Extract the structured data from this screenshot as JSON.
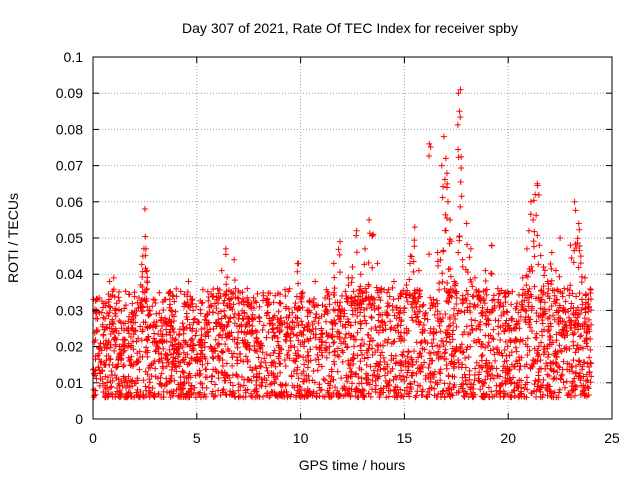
{
  "chart_data": {
    "type": "scatter",
    "title": "Day 307 of 2021, Rate Of TEC Index for receiver spby",
    "xlabel": "GPS time / hours",
    "ylabel": "ROTI / TECUs",
    "xlim": [
      0,
      25
    ],
    "ylim": [
      0,
      0.1
    ],
    "x_ticks": [
      0,
      5,
      10,
      15,
      20,
      25
    ],
    "x_tick_labels": [
      "0",
      "5",
      "10",
      "15",
      "20",
      "25"
    ],
    "y_ticks": [
      0,
      0.01,
      0.02,
      0.03,
      0.04,
      0.05,
      0.06,
      0.07,
      0.08,
      0.09,
      0.1
    ],
    "y_tick_labels": [
      "0",
      "0.01",
      "0.02",
      "0.03",
      "0.04",
      "0.05",
      "0.06",
      "0.07",
      "0.08",
      "0.09",
      "0.1"
    ],
    "grid": true,
    "marker": "plus",
    "color": "#ff0000",
    "series": [
      {
        "points": [
          [
            0.1,
            0.012
          ],
          [
            0.2,
            0.033
          ],
          [
            0.3,
            0.02
          ],
          [
            0.5,
            0.028
          ],
          [
            0.6,
            0.015
          ],
          [
            0.8,
            0.038
          ],
          [
            0.9,
            0.025
          ],
          [
            1.0,
            0.039
          ],
          [
            1.1,
            0.03
          ],
          [
            1.3,
            0.018
          ],
          [
            1.5,
            0.022
          ],
          [
            1.7,
            0.027
          ],
          [
            1.9,
            0.029
          ],
          [
            2.0,
            0.035
          ],
          [
            2.1,
            0.016
          ],
          [
            2.3,
            0.037
          ],
          [
            2.4,
            0.045
          ],
          [
            2.5,
            0.058
          ],
          [
            2.55,
            0.047
          ],
          [
            2.6,
            0.041
          ],
          [
            2.7,
            0.03
          ],
          [
            2.9,
            0.026
          ],
          [
            3.1,
            0.021
          ],
          [
            3.3,
            0.028
          ],
          [
            3.5,
            0.018
          ],
          [
            3.7,
            0.035
          ],
          [
            3.9,
            0.024
          ],
          [
            4.1,
            0.02
          ],
          [
            4.4,
            0.032
          ],
          [
            4.6,
            0.038
          ],
          [
            4.8,
            0.025
          ],
          [
            5.0,
            0.017
          ],
          [
            5.2,
            0.022
          ],
          [
            5.5,
            0.029
          ],
          [
            5.8,
            0.019
          ],
          [
            6.0,
            0.036
          ],
          [
            6.2,
            0.041
          ],
          [
            6.4,
            0.047
          ],
          [
            6.6,
            0.033
          ],
          [
            6.8,
            0.044
          ],
          [
            7.0,
            0.029
          ],
          [
            7.2,
            0.035
          ],
          [
            7.4,
            0.026
          ],
          [
            7.6,
            0.031
          ],
          [
            7.9,
            0.024
          ],
          [
            8.1,
            0.021
          ],
          [
            8.4,
            0.033
          ],
          [
            8.7,
            0.028
          ],
          [
            9.0,
            0.024
          ],
          [
            9.3,
            0.031
          ],
          [
            9.6,
            0.027
          ],
          [
            9.9,
            0.043
          ],
          [
            10.1,
            0.035
          ],
          [
            10.4,
            0.03
          ],
          [
            10.7,
            0.038
          ],
          [
            11.0,
            0.025
          ],
          [
            11.3,
            0.034
          ],
          [
            11.6,
            0.043
          ],
          [
            11.9,
            0.049
          ],
          [
            12.1,
            0.03
          ],
          [
            12.3,
            0.039
          ],
          [
            12.5,
            0.042
          ],
          [
            12.7,
            0.052
          ],
          [
            12.9,
            0.04
          ],
          [
            13.1,
            0.047
          ],
          [
            13.3,
            0.055
          ],
          [
            13.5,
            0.051
          ],
          [
            13.7,
            0.043
          ],
          [
            13.9,
            0.036
          ],
          [
            14.2,
            0.032
          ],
          [
            14.5,
            0.038
          ],
          [
            14.8,
            0.034
          ],
          [
            15.1,
            0.037
          ],
          [
            15.3,
            0.045
          ],
          [
            15.5,
            0.053
          ],
          [
            15.7,
            0.041
          ],
          [
            16.0,
            0.029
          ],
          [
            16.2,
            0.076
          ],
          [
            16.4,
            0.033
          ],
          [
            16.6,
            0.046
          ],
          [
            16.8,
            0.07
          ],
          [
            16.9,
            0.078
          ],
          [
            17.0,
            0.072
          ],
          [
            17.1,
            0.06
          ],
          [
            17.2,
            0.055
          ],
          [
            17.4,
            0.038
          ],
          [
            17.6,
            0.09
          ],
          [
            17.7,
            0.091
          ],
          [
            17.65,
            0.085
          ],
          [
            17.8,
            0.044
          ],
          [
            18.0,
            0.054
          ],
          [
            18.2,
            0.047
          ],
          [
            18.4,
            0.039
          ],
          [
            18.6,
            0.035
          ],
          [
            18.9,
            0.041
          ],
          [
            19.2,
            0.048
          ],
          [
            19.5,
            0.036
          ],
          [
            19.8,
            0.029
          ],
          [
            20.1,
            0.025
          ],
          [
            20.4,
            0.031
          ],
          [
            20.7,
            0.039
          ],
          [
            20.9,
            0.047
          ],
          [
            21.0,
            0.052
          ],
          [
            21.1,
            0.06
          ],
          [
            21.2,
            0.055
          ],
          [
            21.3,
            0.062
          ],
          [
            21.4,
            0.065
          ],
          [
            21.5,
            0.048
          ],
          [
            21.7,
            0.042
          ],
          [
            21.9,
            0.038
          ],
          [
            22.1,
            0.046
          ],
          [
            22.3,
            0.041
          ],
          [
            22.5,
            0.05
          ],
          [
            22.7,
            0.036
          ],
          [
            23.0,
            0.048
          ],
          [
            23.2,
            0.06
          ],
          [
            23.4,
            0.054
          ],
          [
            23.5,
            0.045
          ],
          [
            23.7,
            0.039
          ],
          [
            23.9,
            0.031
          ]
        ],
        "band": {
          "base_low": 0.006,
          "base_high": 0.022,
          "spread_note": ""
        }
      }
    ]
  }
}
